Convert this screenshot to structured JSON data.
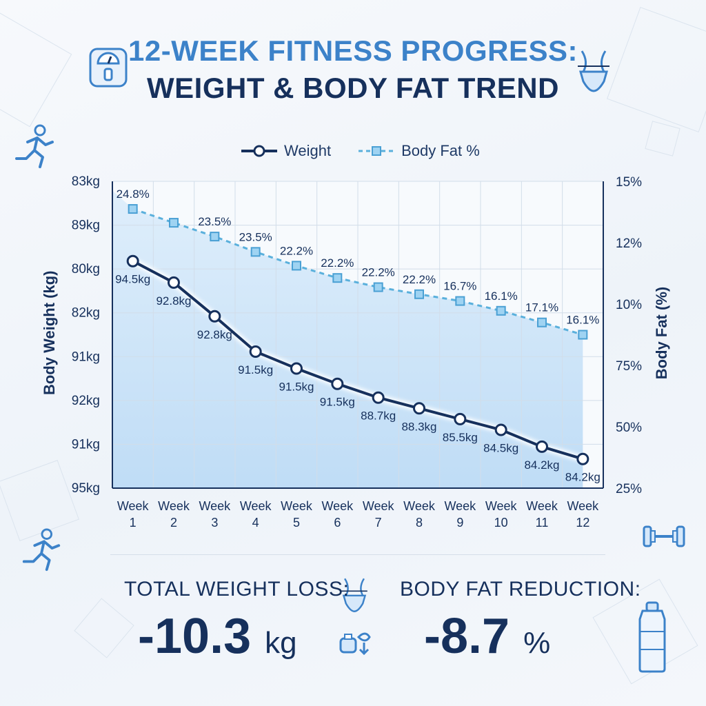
{
  "title_line1": "12-WEEK FITNESS PROGRESS:",
  "title_line2": "WEIGHT & BODY FAT TREND",
  "legend": {
    "weight": "Weight",
    "body_fat": "Body Fat %"
  },
  "axes": {
    "left_title": "Body Weight (kg)",
    "right_title": "Body Fat (%)"
  },
  "stats": {
    "weight_loss_label": "TOTAL WEIGHT LOSS:",
    "weight_loss_value": "-10.3",
    "weight_loss_unit": "kg",
    "fat_label": "BODY FAT REDUCTION:",
    "fat_value": "-8.7",
    "fat_unit": "%"
  },
  "icons": [
    "scale-icon",
    "waist-icon",
    "runner-icon",
    "runner-icon",
    "dumbbell-icon",
    "waist-icon",
    "supplements-icon",
    "water-bottle-icon"
  ],
  "colors": {
    "weight_line": "#16305c",
    "body_fat_line": "#5ab0dc",
    "area_fill": "#cfe6fa",
    "accent": "#3c82c9"
  },
  "chart_data": {
    "type": "line",
    "categories": [
      "Week 1",
      "Week 2",
      "Week 3",
      "Week 4",
      "Week 5",
      "Week 6",
      "Week 7",
      "Week 8",
      "Week 9",
      "Week 10",
      "Week 11",
      "Week 12"
    ],
    "left_tick_labels": [
      "83kg",
      "89kg",
      "80kg",
      "82kg",
      "91kg",
      "92kg",
      "91kg",
      "95kg"
    ],
    "right_tick_labels": [
      "15%",
      "12%",
      "10%",
      "75%",
      "50%",
      "25%"
    ],
    "series": [
      {
        "name": "Weight",
        "axis": "left",
        "marker": "circle",
        "style": "solid",
        "plot_level": [
          0.74,
          0.67,
          0.56,
          0.445,
          0.39,
          0.34,
          0.295,
          0.26,
          0.225,
          0.19,
          0.135,
          0.095
        ],
        "labels": [
          "94.5kg",
          "92.8kg",
          "92.8kg",
          "91.5kg",
          "91.5kg",
          "91.5kg",
          "88.7kg",
          "88.3kg",
          "85.5kg",
          "84.5kg",
          "84.2kg",
          "84.2kg"
        ]
      },
      {
        "name": "Body Fat %",
        "axis": "right",
        "marker": "square",
        "style": "dashed",
        "plot_level": [
          0.91,
          0.865,
          0.82,
          0.77,
          0.725,
          0.685,
          0.655,
          0.632,
          0.61,
          0.578,
          0.54,
          0.5
        ],
        "labels": [
          "24.8%",
          "",
          "23.5%",
          "23.5%",
          "22.2%",
          "22.2%",
          "22.2%",
          "22.2%",
          "16.7%",
          "16.1%",
          "17.1%",
          "16.1%"
        ]
      }
    ],
    "grid": true,
    "legend_position": "top-center"
  }
}
